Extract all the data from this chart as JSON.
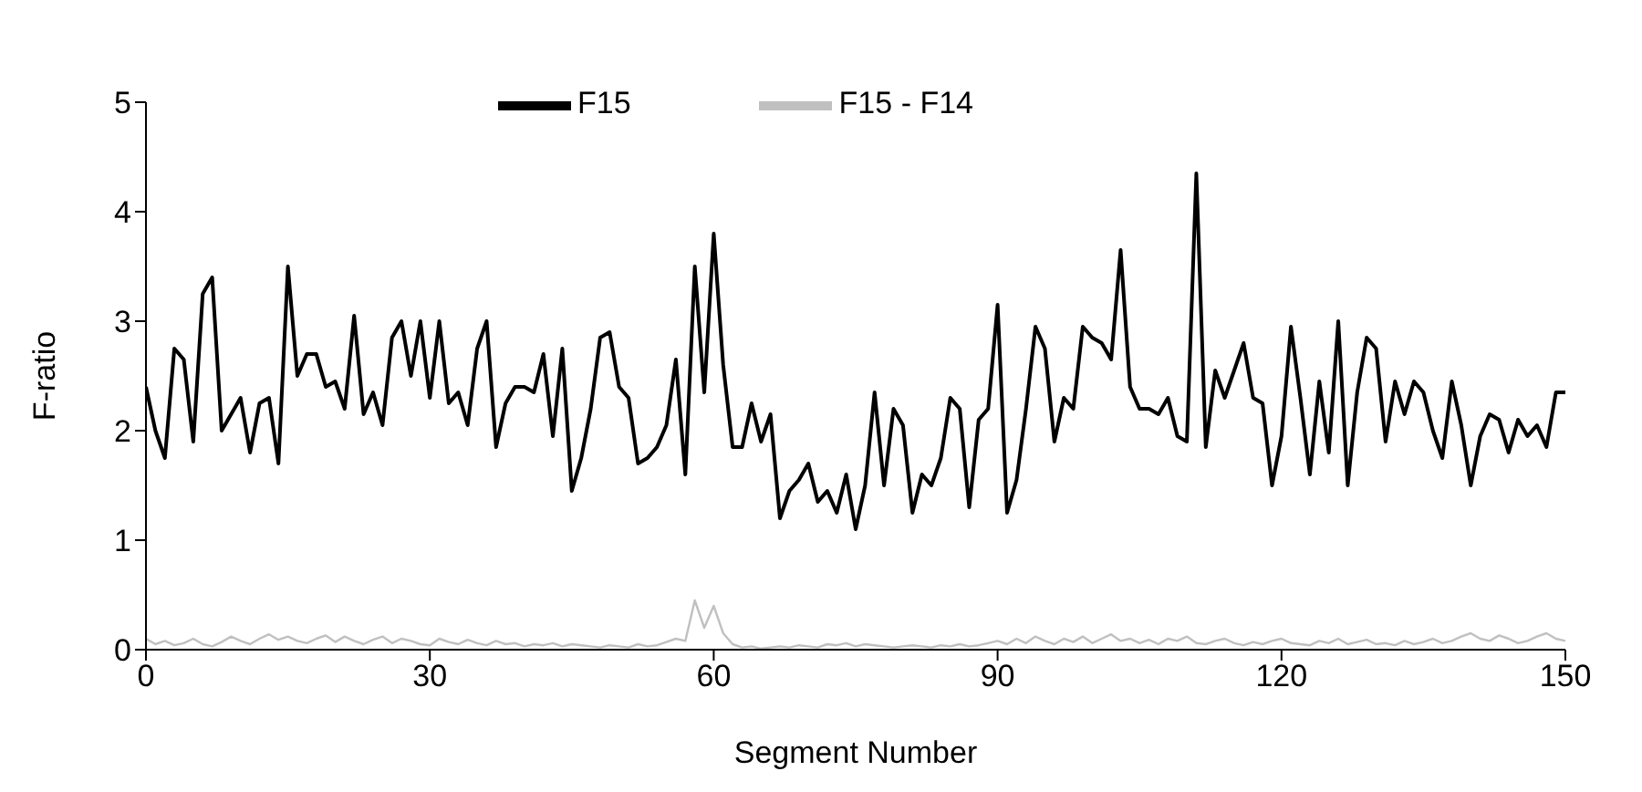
{
  "chart_data": {
    "type": "line",
    "xlabel": "Segment Number",
    "ylabel": "F-ratio",
    "x": [
      0,
      1,
      2,
      3,
      4,
      5,
      6,
      7,
      8,
      9,
      10,
      11,
      12,
      13,
      14,
      15,
      16,
      17,
      18,
      19,
      20,
      21,
      22,
      23,
      24,
      25,
      26,
      27,
      28,
      29,
      30,
      31,
      32,
      33,
      34,
      35,
      36,
      37,
      38,
      39,
      40,
      41,
      42,
      43,
      44,
      45,
      46,
      47,
      48,
      49,
      50,
      51,
      52,
      53,
      54,
      55,
      56,
      57,
      58,
      59,
      60,
      61,
      62,
      63,
      64,
      65,
      66,
      67,
      68,
      69,
      70,
      71,
      72,
      73,
      74,
      75,
      76,
      77,
      78,
      79,
      80,
      81,
      82,
      83,
      84,
      85,
      86,
      87,
      88,
      89,
      90,
      91,
      92,
      93,
      94,
      95,
      96,
      97,
      98,
      99,
      100,
      101,
      102,
      103,
      104,
      105,
      106,
      107,
      108,
      109,
      110,
      111,
      112,
      113,
      114,
      115,
      116,
      117,
      118,
      119,
      120,
      121,
      122,
      123,
      124,
      125,
      126,
      127,
      128,
      129,
      130,
      131,
      132,
      133,
      134,
      135,
      136,
      137,
      138,
      139,
      140,
      141,
      142,
      143,
      144,
      145,
      146,
      147,
      148,
      149,
      150
    ],
    "series": [
      {
        "name": "F15",
        "color": "#000000",
        "values": [
          2.4,
          2.0,
          1.75,
          2.75,
          2.65,
          1.9,
          3.25,
          3.4,
          2.0,
          2.15,
          2.3,
          1.8,
          2.25,
          2.3,
          1.7,
          3.5,
          2.5,
          2.7,
          2.7,
          2.4,
          2.45,
          2.2,
          3.05,
          2.15,
          2.35,
          2.05,
          2.85,
          3.0,
          2.5,
          3.0,
          2.3,
          3.0,
          2.25,
          2.35,
          2.05,
          2.75,
          3.0,
          1.85,
          2.25,
          2.4,
          2.4,
          2.35,
          2.7,
          1.95,
          2.75,
          1.45,
          1.75,
          2.2,
          2.85,
          2.9,
          2.4,
          2.3,
          1.7,
          1.75,
          1.85,
          2.05,
          2.65,
          1.6,
          3.5,
          2.35,
          3.8,
          2.6,
          1.85,
          1.85,
          2.25,
          1.9,
          2.15,
          1.2,
          1.45,
          1.55,
          1.7,
          1.35,
          1.45,
          1.25,
          1.6,
          1.1,
          1.5,
          2.35,
          1.5,
          2.2,
          2.05,
          1.25,
          1.6,
          1.5,
          1.75,
          2.3,
          2.2,
          1.3,
          2.1,
          2.2,
          3.15,
          1.25,
          1.55,
          2.2,
          2.95,
          2.75,
          1.9,
          2.3,
          2.2,
          2.95,
          2.85,
          2.8,
          2.65,
          3.65,
          2.4,
          2.2,
          2.2,
          2.15,
          2.3,
          1.95,
          1.9,
          4.35,
          1.85,
          2.55,
          2.3,
          2.55,
          2.8,
          2.3,
          2.25,
          1.5,
          1.95,
          2.95,
          2.3,
          1.6,
          2.45,
          1.8,
          3.0,
          1.5,
          2.35,
          2.85,
          2.75,
          1.9,
          2.45,
          2.15,
          2.45,
          2.35,
          2.0,
          1.75,
          2.45,
          2.05,
          1.5,
          1.95,
          2.15,
          2.1,
          1.8,
          2.1,
          1.95,
          2.05,
          1.85,
          2.35,
          2.35
        ]
      },
      {
        "name": "F15 - F14",
        "color": "#c0c0c0",
        "values": [
          0.1,
          0.05,
          0.08,
          0.04,
          0.06,
          0.1,
          0.05,
          0.03,
          0.07,
          0.12,
          0.08,
          0.05,
          0.1,
          0.14,
          0.09,
          0.12,
          0.08,
          0.06,
          0.1,
          0.13,
          0.07,
          0.12,
          0.08,
          0.05,
          0.09,
          0.12,
          0.06,
          0.1,
          0.08,
          0.05,
          0.04,
          0.1,
          0.07,
          0.05,
          0.09,
          0.06,
          0.04,
          0.08,
          0.05,
          0.06,
          0.03,
          0.05,
          0.04,
          0.06,
          0.03,
          0.05,
          0.04,
          0.03,
          0.02,
          0.04,
          0.03,
          0.02,
          0.05,
          0.03,
          0.04,
          0.07,
          0.1,
          0.08,
          0.45,
          0.2,
          0.4,
          0.15,
          0.05,
          0.02,
          0.03,
          0.01,
          0.02,
          0.03,
          0.02,
          0.04,
          0.03,
          0.02,
          0.05,
          0.04,
          0.06,
          0.03,
          0.05,
          0.04,
          0.03,
          0.02,
          0.03,
          0.04,
          0.03,
          0.02,
          0.04,
          0.03,
          0.05,
          0.03,
          0.04,
          0.06,
          0.08,
          0.05,
          0.1,
          0.06,
          0.12,
          0.08,
          0.05,
          0.1,
          0.07,
          0.12,
          0.06,
          0.1,
          0.14,
          0.08,
          0.1,
          0.06,
          0.09,
          0.05,
          0.1,
          0.08,
          0.12,
          0.06,
          0.05,
          0.08,
          0.1,
          0.06,
          0.04,
          0.07,
          0.05,
          0.08,
          0.1,
          0.06,
          0.05,
          0.04,
          0.08,
          0.06,
          0.1,
          0.05,
          0.07,
          0.09,
          0.05,
          0.06,
          0.04,
          0.08,
          0.05,
          0.07,
          0.1,
          0.06,
          0.08,
          0.12,
          0.15,
          0.1,
          0.08,
          0.13,
          0.1,
          0.06,
          0.08,
          0.12,
          0.15,
          0.1,
          0.08
        ]
      }
    ],
    "xlim": [
      0,
      150
    ],
    "xticks": [
      0,
      30,
      60,
      90,
      120,
      150
    ],
    "ylim": [
      0,
      5
    ],
    "yticks": [
      0,
      1,
      2,
      3,
      4,
      5
    ],
    "legend": "top",
    "grid": false,
    "marker": "none",
    "line_style": "solid"
  }
}
